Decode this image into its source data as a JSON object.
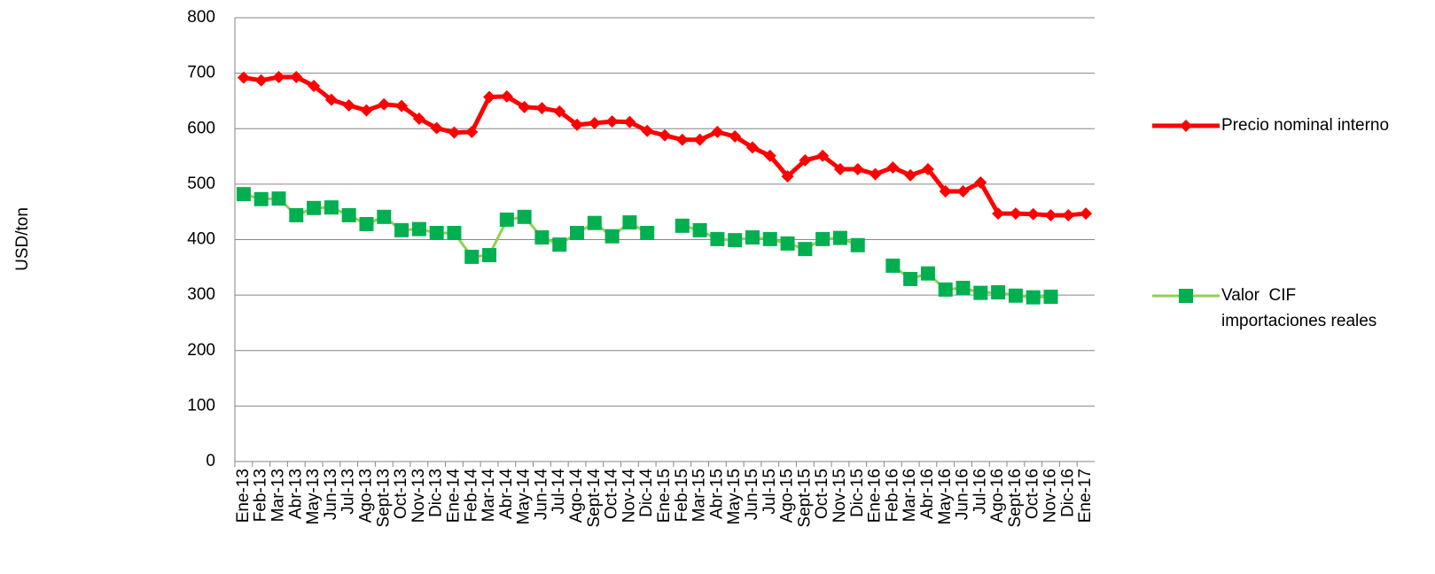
{
  "chart_data": {
    "type": "line",
    "y_label": "USD/ton",
    "categories": [
      "Ene-13",
      "Feb-13",
      "Mar-13",
      "Abr-13",
      "May-13",
      "Jun-13",
      "Jul-13",
      "Ago-13",
      "Sept-13",
      "Oct-13",
      "Nov-13",
      "Dic-13",
      "Ene-14",
      "Feb-14",
      "Mar-14",
      "Abr-14",
      "May-14",
      "Jun-14",
      "Jul-14",
      "Ago-14",
      "Sept-14",
      "Oct-14",
      "Nov-14",
      "Dic-14",
      "Ene-15",
      "Feb-15",
      "Mar-15",
      "Abr-15",
      "May-15",
      "Jun-15",
      "Jul-15",
      "Ago-15",
      "Sept-15",
      "Oct-15",
      "Nov-15",
      "Dic-15",
      "Ene-16",
      "Feb-16",
      "Mar-16",
      "Abr-16",
      "May-16",
      "Jun-16",
      "Jul-16",
      "Ago-16",
      "Sept-16",
      "Oct-16",
      "Nov-16",
      "Dic-16",
      "Ene-17"
    ],
    "series": [
      {
        "name": "Precio nominal interno",
        "color": "#ff0000",
        "marker": "diamond",
        "values": [
          692,
          687,
          693,
          693,
          677,
          652,
          642,
          633,
          644,
          641,
          618,
          601,
          593,
          594,
          657,
          658,
          639,
          637,
          631,
          607,
          610,
          613,
          612,
          596,
          588,
          580,
          580,
          594,
          586,
          566,
          551,
          514,
          543,
          551,
          527,
          527,
          518,
          530,
          516,
          527,
          487,
          487,
          503,
          447,
          447,
          446,
          444,
          444,
          447
        ]
      },
      {
        "name": "Valor  CIF importaciones reales",
        "color": "#00b050",
        "line_color": "#92d050",
        "marker": "square",
        "values": [
          482,
          473,
          474,
          444,
          457,
          458,
          444,
          428,
          441,
          417,
          419,
          412,
          412,
          369,
          372,
          436,
          441,
          404,
          391,
          412,
          430,
          406,
          431,
          412,
          null,
          425,
          417,
          401,
          399,
          404,
          401,
          393,
          383,
          401,
          403,
          390,
          null,
          353,
          329,
          339,
          310,
          313,
          304,
          305,
          299,
          296,
          297,
          null,
          null
        ]
      }
    ],
    "ylim": [
      0,
      800
    ],
    "yticks": [
      0,
      100,
      200,
      300,
      400,
      500,
      600,
      700,
      800
    ],
    "grid": true,
    "legend": "right"
  }
}
